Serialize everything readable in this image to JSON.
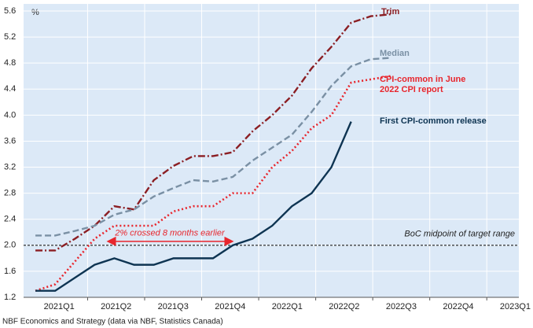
{
  "chart_data": {
    "type": "line",
    "y_label": "%",
    "source": "NBF Economics and Strategy (data via NBF, Statistics Canada)",
    "x": [
      0,
      1,
      2,
      3,
      4,
      5,
      6,
      7,
      8,
      9,
      10,
      11,
      12,
      13,
      14,
      15,
      16,
      17,
      18
    ],
    "xlim": [
      -0.6,
      24.5
    ],
    "xticks": [
      {
        "value": 1.2,
        "label": "2021Q1"
      },
      {
        "value": 4.09,
        "label": "2021Q2"
      },
      {
        "value": 6.98,
        "label": "2021Q3"
      },
      {
        "value": 9.87,
        "label": "2021Q4"
      },
      {
        "value": 12.76,
        "label": "2022Q1"
      },
      {
        "value": 15.65,
        "label": "2022Q2"
      },
      {
        "value": 18.54,
        "label": "2022Q3"
      },
      {
        "value": 21.43,
        "label": "2022Q4"
      },
      {
        "value": 24.32,
        "label": "2023Q1"
      }
    ],
    "ylim": [
      1.2,
      5.6
    ],
    "yticks": [
      {
        "value": 1.2,
        "label": "1.2"
      },
      {
        "value": 1.6,
        "label": "1.6"
      },
      {
        "value": 2,
        "label": "2.0"
      },
      {
        "value": 2.4,
        "label": "2.4"
      },
      {
        "value": 2.8,
        "label": "2.8"
      },
      {
        "value": 3.2,
        "label": "3.2"
      },
      {
        "value": 3.6,
        "label": "3.6"
      },
      {
        "value": 4,
        "label": "4.0"
      },
      {
        "value": 4.4,
        "label": "4.4"
      },
      {
        "value": 4.8,
        "label": "4.8"
      },
      {
        "value": 5.2,
        "label": "5.2"
      },
      {
        "value": 5.6,
        "label": "5.6"
      }
    ],
    "grid": true,
    "series": [
      {
        "name": "Trim",
        "color": "#8b1e23",
        "dash": "9 3 2 3",
        "values": [
          1.92,
          1.92,
          2.1,
          2.3,
          2.6,
          2.55,
          3.0,
          3.22,
          3.37,
          3.37,
          3.43,
          3.75,
          4.0,
          4.3,
          4.72,
          5.05,
          5.42,
          5.52,
          5.55
        ]
      },
      {
        "name": "Median",
        "color": "#7a90a4",
        "dash": "8 4",
        "values": [
          2.15,
          2.15,
          2.22,
          2.3,
          2.47,
          2.55,
          2.75,
          2.88,
          3.0,
          2.98,
          3.05,
          3.3,
          3.5,
          3.7,
          4.05,
          4.45,
          4.75,
          4.86,
          4.88
        ]
      },
      {
        "name": "CPI-common in June 2022 CPI report",
        "color": "#e8262d",
        "dash": "2 3",
        "values": [
          1.3,
          1.4,
          1.75,
          2.1,
          2.3,
          2.3,
          2.3,
          2.52,
          2.6,
          2.6,
          2.8,
          2.8,
          3.2,
          3.45,
          3.8,
          4.0,
          4.5,
          4.55,
          4.6
        ]
      },
      {
        "name": "First CPI-common release",
        "color": "#0e3452",
        "dash": "",
        "values": [
          1.3,
          1.3,
          1.5,
          1.7,
          1.8,
          1.7,
          1.7,
          1.8,
          1.8,
          1.8,
          2.0,
          2.1,
          2.3,
          2.6,
          2.8,
          3.2,
          3.9,
          null,
          null
        ]
      }
    ],
    "reference_line": {
      "value": 2,
      "label": "BoC midpoint of target range"
    },
    "annotation": "2% crossed 8 months earlier"
  }
}
